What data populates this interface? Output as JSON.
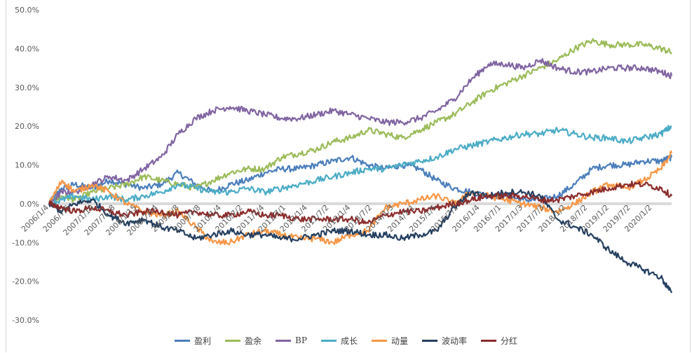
{
  "chart_data": {
    "type": "line",
    "title": "",
    "xlabel": "",
    "ylabel": "",
    "ylim": [
      -30,
      50
    ],
    "yticks": [
      50,
      40,
      30,
      20,
      10,
      0,
      -10,
      -20,
      -30
    ],
    "ytick_labels": [
      "50.0%",
      "40.0%",
      "30.0%",
      "20.0%",
      "10.0%",
      "0.0%",
      "-10.0%",
      "-20.0%",
      "-30.0%"
    ],
    "xrange": [
      2006.0,
      2020.45
    ],
    "xtick_labels": [
      "2006/1/4",
      "2006/7/5",
      "2007/1/19",
      "2007/7/18",
      "2008/1/15",
      "2008/7/14",
      "2009/1/8",
      "2009/7/8",
      "2010/1/4",
      "2010/7/2",
      "2011/1/4",
      "2011/7/1",
      "2012/1/4",
      "2012/7/2",
      "2013/1/4",
      "2013/7/2",
      "2014/1/3",
      "2014/7/1",
      "2015/1/5",
      "2015/7/2",
      "2016/1/4",
      "2016/7/1",
      "2017/1/3",
      "2017/7/3",
      "2018/1/2",
      "2018/7/2",
      "2019/1/2",
      "2019/7/2",
      "2020/1/2"
    ],
    "xtick_positions": [
      2006.0,
      2006.5,
      2007.05,
      2007.54,
      2008.04,
      2008.53,
      2009.02,
      2009.52,
      2010.0,
      2010.5,
      2011.0,
      2011.5,
      2012.0,
      2012.5,
      2013.0,
      2013.5,
      2014.0,
      2014.5,
      2015.0,
      2015.5,
      2016.0,
      2016.5,
      2017.0,
      2017.5,
      2018.0,
      2018.5,
      2019.0,
      2019.5,
      2020.0
    ],
    "series": [
      {
        "name": "盈利",
        "color": "#4a7ebb",
        "x": [
          2006.0,
          2006.3,
          2006.6,
          2007.0,
          2007.4,
          2007.8,
          2008.2,
          2008.6,
          2009.0,
          2009.4,
          2009.8,
          2010.2,
          2010.6,
          2011.0,
          2011.4,
          2011.8,
          2012.2,
          2012.6,
          2013.0,
          2013.4,
          2013.8,
          2014.2,
          2014.6,
          2015.0,
          2015.4,
          2015.8,
          2016.2,
          2016.6,
          2017.0,
          2017.4,
          2017.8,
          2018.2,
          2018.6,
          2019.0,
          2019.4,
          2019.8,
          2020.2,
          2020.45
        ],
        "y": [
          0,
          4,
          5,
          4,
          6,
          5,
          4,
          5,
          8,
          5,
          3,
          5,
          6,
          8,
          9,
          9,
          10,
          11,
          12,
          10,
          9,
          10,
          9,
          6,
          4,
          3,
          2,
          2,
          1,
          1,
          2,
          5,
          9,
          10,
          10,
          11,
          11,
          12
        ]
      },
      {
        "name": "盈余",
        "color": "#9bbb59",
        "x": [
          2006.0,
          2006.3,
          2006.6,
          2007.0,
          2007.4,
          2007.8,
          2008.2,
          2008.6,
          2009.0,
          2009.4,
          2009.8,
          2010.2,
          2010.6,
          2011.0,
          2011.4,
          2011.8,
          2012.2,
          2012.6,
          2013.0,
          2013.4,
          2013.8,
          2014.2,
          2014.6,
          2015.0,
          2015.4,
          2015.8,
          2016.2,
          2016.6,
          2017.0,
          2017.4,
          2017.8,
          2018.2,
          2018.6,
          2019.0,
          2019.4,
          2019.8,
          2020.2,
          2020.45
        ],
        "y": [
          0,
          2,
          1,
          3,
          4,
          5,
          7,
          6,
          5,
          4,
          6,
          8,
          9,
          9,
          12,
          13,
          14,
          16,
          17,
          19,
          18,
          17,
          19,
          21,
          23,
          26,
          29,
          31,
          33,
          35,
          37,
          40,
          42,
          41,
          41,
          41,
          40,
          39
        ]
      },
      {
        "name": "BP",
        "color": "#8064a2",
        "x": [
          2006.0,
          2006.3,
          2006.6,
          2007.0,
          2007.4,
          2007.8,
          2008.2,
          2008.6,
          2009.0,
          2009.4,
          2009.8,
          2010.2,
          2010.6,
          2011.0,
          2011.4,
          2011.8,
          2012.2,
          2012.6,
          2013.0,
          2013.4,
          2013.8,
          2014.2,
          2014.6,
          2015.0,
          2015.4,
          2015.8,
          2016.2,
          2016.6,
          2017.0,
          2017.4,
          2017.8,
          2018.2,
          2018.6,
          2019.0,
          2019.4,
          2019.8,
          2020.2,
          2020.45
        ],
        "y": [
          0,
          3,
          3,
          5,
          7,
          6,
          9,
          12,
          18,
          22,
          24,
          25,
          24,
          23,
          22,
          22,
          23,
          24,
          23,
          22,
          21,
          21,
          22,
          24,
          27,
          32,
          36,
          36,
          35,
          37,
          35,
          34,
          34,
          35,
          35,
          35,
          34,
          33
        ]
      },
      {
        "name": "成长",
        "color": "#4bacc6",
        "x": [
          2006.0,
          2006.3,
          2006.6,
          2007.0,
          2007.4,
          2007.8,
          2008.2,
          2008.6,
          2009.0,
          2009.4,
          2009.8,
          2010.2,
          2010.6,
          2011.0,
          2011.4,
          2011.8,
          2012.2,
          2012.6,
          2013.0,
          2013.4,
          2013.8,
          2014.2,
          2014.6,
          2015.0,
          2015.4,
          2015.8,
          2016.2,
          2016.6,
          2017.0,
          2017.4,
          2017.8,
          2018.2,
          2018.6,
          2019.0,
          2019.4,
          2019.8,
          2020.2,
          2020.45
        ],
        "y": [
          0,
          1,
          2,
          1,
          2,
          1,
          2,
          3,
          5,
          4,
          3,
          3,
          4,
          3,
          4,
          5,
          6,
          7,
          8,
          9,
          9,
          10,
          11,
          12,
          14,
          15,
          16,
          17,
          18,
          18,
          19,
          18,
          17,
          17,
          16,
          17,
          18,
          20
        ]
      },
      {
        "name": "动量",
        "color": "#f79646",
        "x": [
          2006.0,
          2006.3,
          2006.6,
          2007.0,
          2007.4,
          2007.8,
          2008.2,
          2008.6,
          2009.0,
          2009.4,
          2009.8,
          2010.2,
          2010.6,
          2011.0,
          2011.4,
          2011.8,
          2012.2,
          2012.6,
          2013.0,
          2013.4,
          2013.8,
          2014.2,
          2014.6,
          2015.0,
          2015.4,
          2015.8,
          2016.2,
          2016.6,
          2017.0,
          2017.4,
          2017.8,
          2018.2,
          2018.6,
          2019.0,
          2019.4,
          2019.8,
          2020.2,
          2020.45
        ],
        "y": [
          0,
          6,
          3,
          5,
          3,
          0,
          -2,
          -3,
          -2,
          -6,
          -10,
          -10,
          -8,
          -7,
          -8,
          -9,
          -9,
          -10,
          -8,
          -7,
          -1,
          0,
          1,
          2,
          0,
          3,
          2,
          1,
          0,
          -1,
          -2,
          0,
          3,
          5,
          4,
          6,
          9,
          13
        ]
      },
      {
        "name": "波动率",
        "color": "#243f60",
        "x": [
          2006.0,
          2006.3,
          2006.6,
          2007.0,
          2007.4,
          2007.8,
          2008.2,
          2008.6,
          2009.0,
          2009.4,
          2009.8,
          2010.2,
          2010.6,
          2011.0,
          2011.4,
          2011.8,
          2012.2,
          2012.6,
          2013.0,
          2013.4,
          2013.8,
          2014.2,
          2014.6,
          2015.0,
          2015.4,
          2015.8,
          2016.2,
          2016.6,
          2017.0,
          2017.4,
          2017.8,
          2018.2,
          2018.6,
          2019.0,
          2019.4,
          2019.8,
          2020.2,
          2020.45
        ],
        "y": [
          0,
          -2,
          0,
          1,
          -3,
          -5,
          -4,
          -6,
          -7,
          -9,
          -8,
          -7,
          -8,
          -8,
          -9,
          -9,
          -8,
          -7,
          -7,
          -8,
          -8,
          -9,
          -8,
          -7,
          -1,
          3,
          2,
          3,
          3,
          2,
          -4,
          -6,
          -8,
          -12,
          -15,
          -17,
          -19,
          -23
        ]
      },
      {
        "name": "分红",
        "color": "#8b2c2c",
        "x": [
          2006.0,
          2006.3,
          2006.6,
          2007.0,
          2007.4,
          2007.8,
          2008.2,
          2008.6,
          2009.0,
          2009.4,
          2009.8,
          2010.2,
          2010.6,
          2011.0,
          2011.4,
          2011.8,
          2012.2,
          2012.6,
          2013.0,
          2013.4,
          2013.8,
          2014.2,
          2014.6,
          2015.0,
          2015.4,
          2015.8,
          2016.2,
          2016.6,
          2017.0,
          2017.4,
          2017.8,
          2018.2,
          2018.6,
          2019.0,
          2019.4,
          2019.8,
          2020.2,
          2020.45
        ],
        "y": [
          0,
          -1,
          -2,
          -1,
          -2,
          -3,
          -2,
          -2,
          -3,
          -2,
          -3,
          -3,
          -2,
          -3,
          -3,
          -4,
          -4,
          -4,
          -4,
          -5,
          -3,
          -2,
          -2,
          -1,
          0,
          1,
          2,
          2,
          2,
          1,
          1,
          2,
          3,
          4,
          5,
          5,
          4,
          2
        ]
      }
    ]
  },
  "legend": {
    "items": [
      {
        "label": "盈利",
        "color": "#4a7ebb"
      },
      {
        "label": "盈余",
        "color": "#9bbb59"
      },
      {
        "label": "BP",
        "color": "#8064a2"
      },
      {
        "label": "成长",
        "color": "#4bacc6"
      },
      {
        "label": "动量",
        "color": "#f79646"
      },
      {
        "label": "波动率",
        "color": "#243f60"
      },
      {
        "label": "分红",
        "color": "#8b2c2c"
      }
    ]
  },
  "colors": {
    "zero_line": "#d9d9d9",
    "axis_text": "#595959"
  }
}
